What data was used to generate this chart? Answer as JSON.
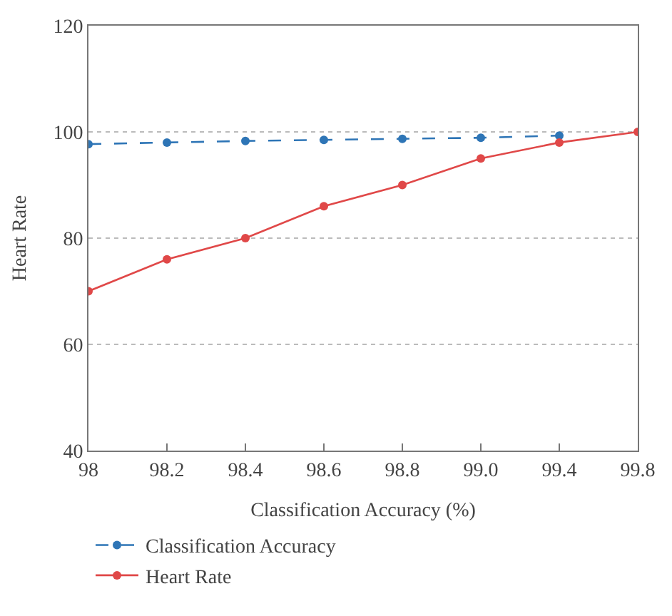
{
  "chart_data": {
    "type": "line",
    "xlabel": "Classification Accuracy (%)",
    "ylabel": "Heart Rate",
    "categories": [
      "98",
      "98.2",
      "98.4",
      "98.6",
      "98.8",
      "99.0",
      "99.4",
      "99.8"
    ],
    "series": [
      {
        "name": "Classification Accuracy",
        "color": "#2e75b6",
        "line_style": "dashed",
        "values": [
          97.7,
          98.0,
          98.3,
          98.5,
          98.7,
          98.9,
          99.3,
          null
        ]
      },
      {
        "name": "Heart Rate",
        "color": "#e04848",
        "line_style": "solid",
        "values": [
          70,
          76,
          80,
          86,
          90,
          95,
          98,
          100
        ]
      }
    ],
    "ylim": [
      40,
      120
    ],
    "yticks": [
      40,
      60,
      80,
      100,
      120
    ],
    "grid": "y",
    "legend": "bottom left",
    "marker": "circle"
  }
}
